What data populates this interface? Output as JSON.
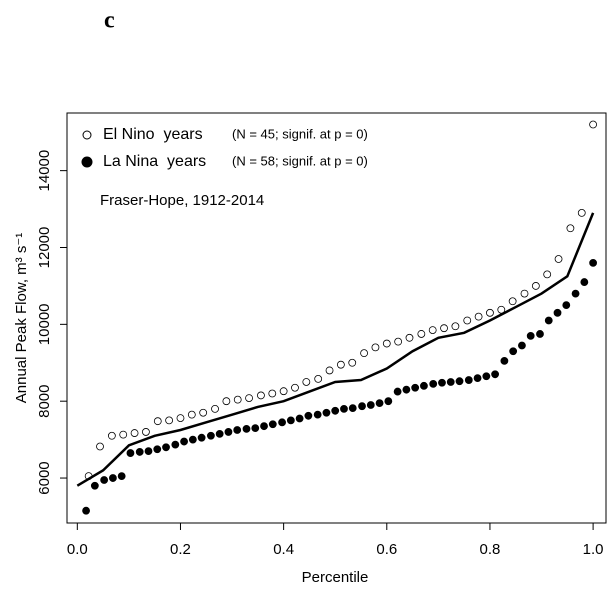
{
  "chart_data": {
    "type": "scatter",
    "panel_label": "c",
    "x_label": "Percentile",
    "y_label": "Annual Peak Flow, m³ s⁻¹",
    "annotation": "Fraser-Hope, 1912-2014",
    "xlim": [
      -0.02,
      1.025
    ],
    "ylim": [
      4830,
      15500
    ],
    "xticks": [
      {
        "value": 0,
        "label": "0.0"
      },
      0.2,
      0.4,
      0.6,
      0.8,
      {
        "value": 1,
        "label": "1.0"
      }
    ],
    "yticks": [
      6000,
      8000,
      10000,
      12000,
      14000
    ],
    "legend": "top-left",
    "series": [
      {
        "name": "El Nino  years",
        "note": "(N = 45; signif. at p = 0)",
        "marker": "open",
        "color": "#000000",
        "x": [
          0.022,
          0.044,
          0.067,
          0.089,
          0.111,
          0.133,
          0.156,
          0.178,
          0.2,
          0.222,
          0.244,
          0.267,
          0.289,
          0.311,
          0.333,
          0.356,
          0.378,
          0.4,
          0.422,
          0.444,
          0.467,
          0.489,
          0.511,
          0.533,
          0.556,
          0.578,
          0.6,
          0.622,
          0.644,
          0.667,
          0.689,
          0.711,
          0.733,
          0.756,
          0.778,
          0.8,
          0.822,
          0.844,
          0.867,
          0.889,
          0.911,
          0.933,
          0.956,
          0.978,
          1.0
        ],
        "values": [
          6050,
          6820,
          7100,
          7130,
          7170,
          7200,
          7480,
          7500,
          7560,
          7650,
          7700,
          7800,
          8000,
          8040,
          8080,
          8150,
          8200,
          8260,
          8350,
          8500,
          8580,
          8800,
          8950,
          9000,
          9250,
          9400,
          9500,
          9550,
          9650,
          9750,
          9850,
          9900,
          9950,
          10100,
          10200,
          10300,
          10380,
          10600,
          10800,
          11000,
          11300,
          11700,
          12500,
          12900,
          15200
        ]
      },
      {
        "name": "La Nina  years",
        "note": "(N = 58; signif. at p = 0)",
        "marker": "filled",
        "color": "#000000",
        "x": [
          0.017,
          0.034,
          0.052,
          0.069,
          0.086,
          0.103,
          0.121,
          0.138,
          0.155,
          0.172,
          0.19,
          0.207,
          0.224,
          0.241,
          0.259,
          0.276,
          0.293,
          0.31,
          0.328,
          0.345,
          0.362,
          0.379,
          0.397,
          0.414,
          0.431,
          0.448,
          0.466,
          0.483,
          0.5,
          0.517,
          0.534,
          0.552,
          0.569,
          0.586,
          0.603,
          0.621,
          0.638,
          0.655,
          0.672,
          0.69,
          0.707,
          0.724,
          0.741,
          0.759,
          0.776,
          0.793,
          0.81,
          0.828,
          0.845,
          0.862,
          0.879,
          0.897,
          0.914,
          0.931,
          0.948,
          0.966,
          0.983,
          1.0
        ],
        "values": [
          5150,
          5800,
          5950,
          6000,
          6050,
          6650,
          6680,
          6700,
          6750,
          6800,
          6870,
          6950,
          7000,
          7050,
          7100,
          7150,
          7200,
          7250,
          7280,
          7300,
          7350,
          7400,
          7450,
          7500,
          7550,
          7620,
          7650,
          7700,
          7750,
          7800,
          7820,
          7870,
          7900,
          7950,
          8000,
          8250,
          8300,
          8350,
          8400,
          8450,
          8480,
          8500,
          8520,
          8550,
          8600,
          8650,
          8700,
          9050,
          9300,
          9450,
          9700,
          9750,
          10100,
          10300,
          10500,
          10800,
          11100,
          11600
        ]
      }
    ],
    "line": {
      "color": "#000000",
      "x": [
        0,
        0.05,
        0.1,
        0.15,
        0.2,
        0.25,
        0.3,
        0.35,
        0.4,
        0.45,
        0.5,
        0.55,
        0.6,
        0.65,
        0.7,
        0.75,
        0.8,
        0.85,
        0.9,
        0.95,
        1.0
      ],
      "values": [
        5800,
        6200,
        6850,
        7100,
        7250,
        7450,
        7650,
        7850,
        8000,
        8250,
        8500,
        8550,
        8850,
        9300,
        9650,
        9780,
        10100,
        10450,
        10800,
        11250,
        12900
      ]
    }
  }
}
